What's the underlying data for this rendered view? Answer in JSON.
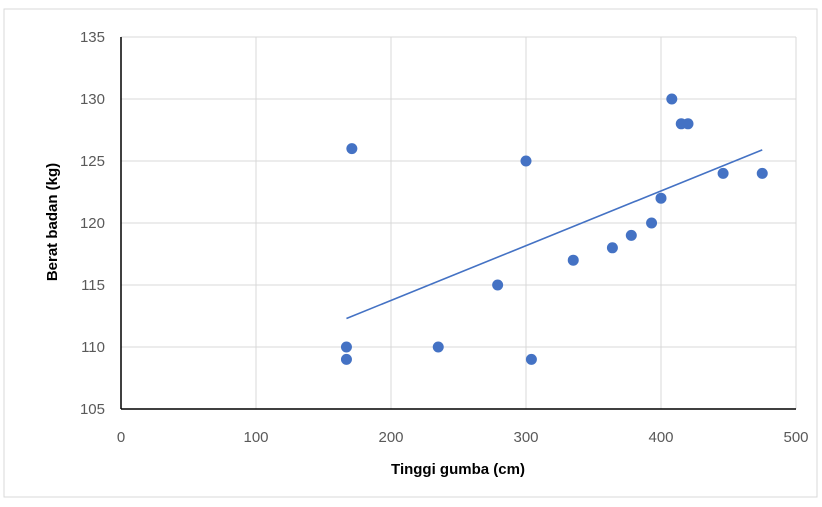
{
  "chart_data": {
    "type": "scatter",
    "title": "",
    "xlabel": "Tinggi gumba (cm)",
    "ylabel": "Berat badan (kg)",
    "xlim": [
      0,
      500
    ],
    "ylim": [
      105,
      135
    ],
    "x_ticks": [
      0,
      100,
      200,
      300,
      400,
      500
    ],
    "y_ticks": [
      105,
      110,
      115,
      120,
      125,
      130,
      135
    ],
    "grid": true,
    "legend": "none",
    "points": [
      {
        "x": 167,
        "y": 110
      },
      {
        "x": 167,
        "y": 109
      },
      {
        "x": 171,
        "y": 126
      },
      {
        "x": 235,
        "y": 110
      },
      {
        "x": 279,
        "y": 115
      },
      {
        "x": 300,
        "y": 125
      },
      {
        "x": 304,
        "y": 109
      },
      {
        "x": 335,
        "y": 117
      },
      {
        "x": 364,
        "y": 118
      },
      {
        "x": 378,
        "y": 119
      },
      {
        "x": 393,
        "y": 120
      },
      {
        "x": 400,
        "y": 122
      },
      {
        "x": 408,
        "y": 130
      },
      {
        "x": 415,
        "y": 128
      },
      {
        "x": 420,
        "y": 128
      },
      {
        "x": 446,
        "y": 124
      },
      {
        "x": 475,
        "y": 124
      }
    ],
    "trendline": {
      "type": "linear",
      "x": [
        167,
        475
      ],
      "y": [
        112.3,
        125.9
      ]
    },
    "colors": {
      "marker": "#4472C4",
      "trendline": "#4472C4",
      "grid": "#D9D9D9",
      "axis": "#000000",
      "frame": "#D9D9D9"
    }
  }
}
